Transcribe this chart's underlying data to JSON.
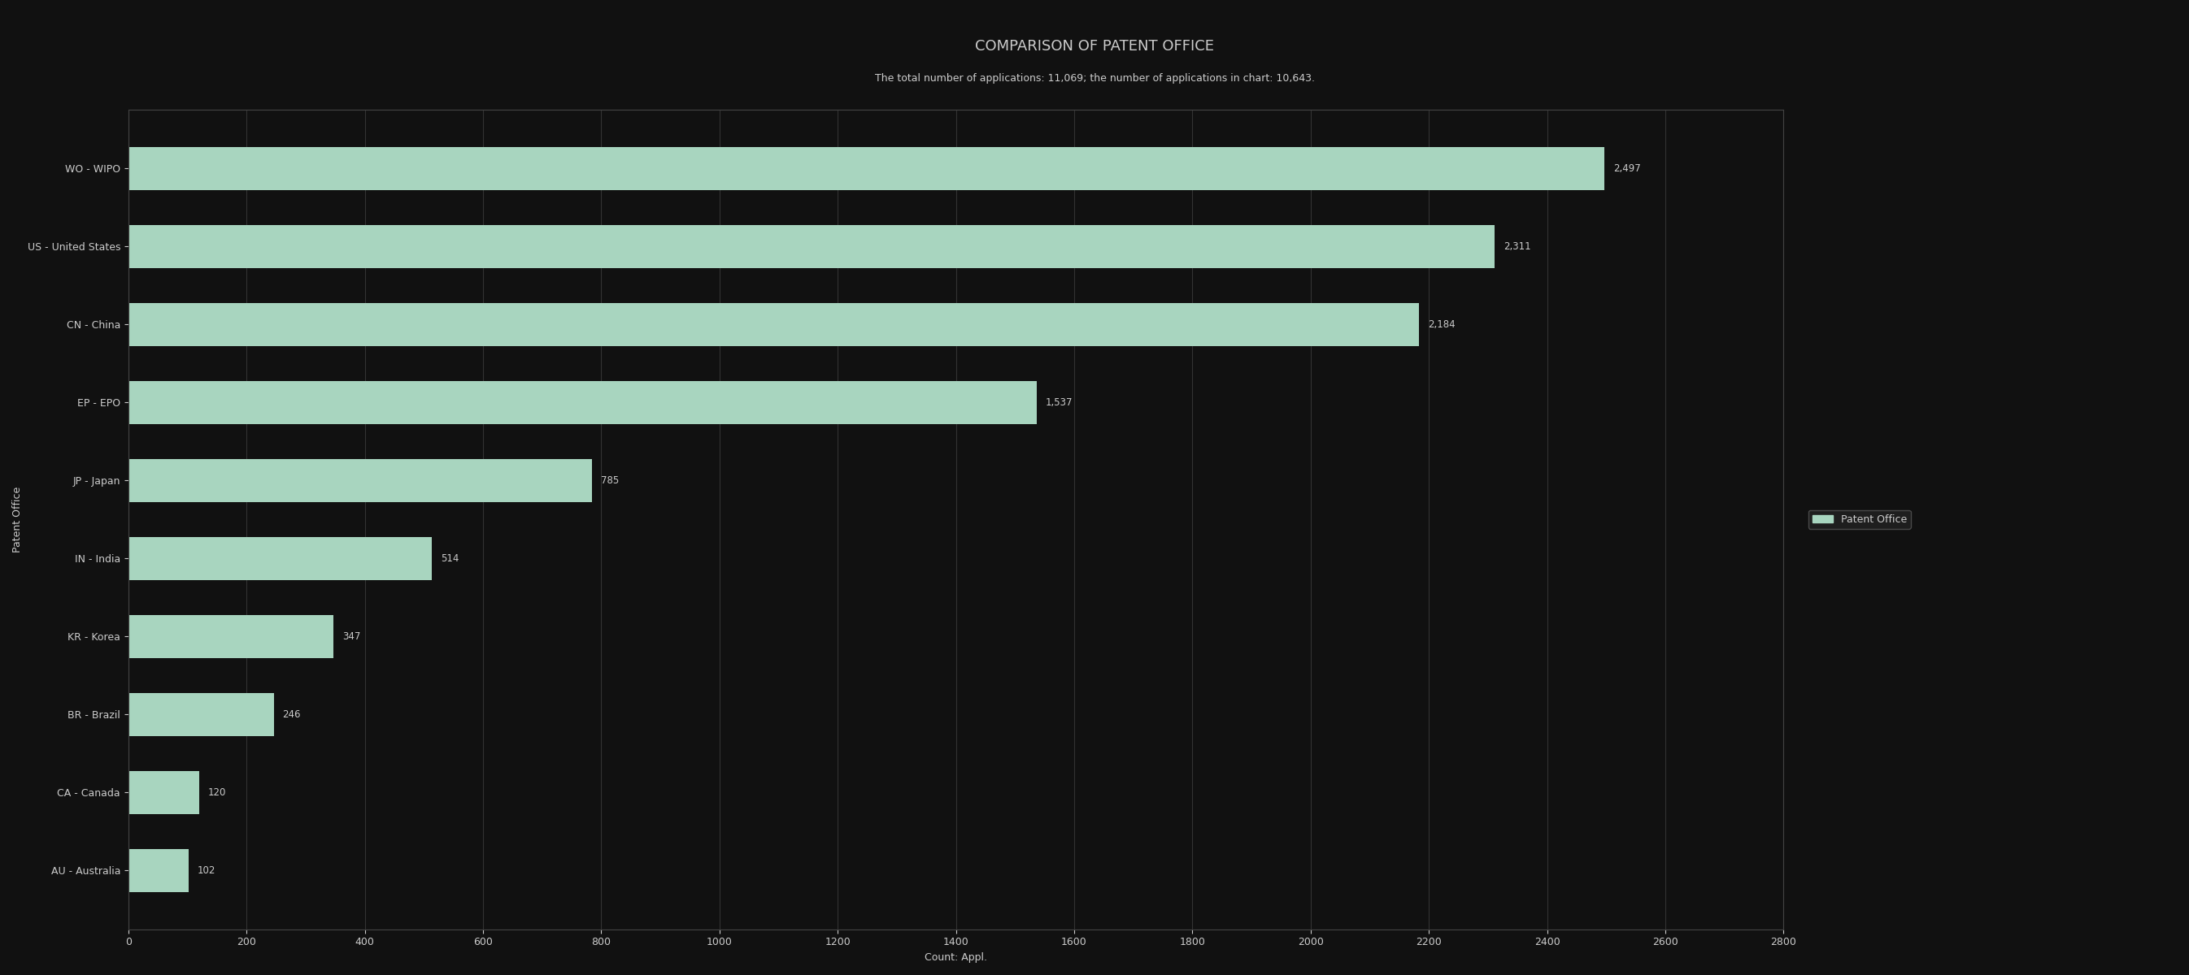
{
  "title": "COMPARISON OF PATENT OFFICE",
  "subtitle": "The total number of applications: 11,069; the number of applications in chart: 10,643.",
  "categories": [
    "AU - Australia",
    "CA - Canada",
    "BR - Brazil",
    "KR - Korea",
    "IN - India",
    "JP - Japan",
    "EP - EPO",
    "CN - China",
    "US - United States",
    "WO - WIPO"
  ],
  "values": [
    102,
    120,
    246,
    347,
    514,
    785,
    1537,
    2184,
    2311,
    2497
  ],
  "bar_color": "#a8d5bf",
  "background_color": "#111111",
  "text_color": "#cccccc",
  "xlabel": "Count: Appl.",
  "ylabel": "Patent Office",
  "xlim": [
    0,
    2800
  ],
  "xticks": [
    0,
    200,
    400,
    600,
    800,
    1000,
    1200,
    1400,
    1600,
    1800,
    2000,
    2200,
    2400,
    2600,
    2800
  ],
  "legend_label": "Patent Office",
  "title_fontsize": 13,
  "subtitle_fontsize": 9,
  "axis_label_fontsize": 9,
  "tick_fontsize": 9,
  "value_fontsize": 8.5
}
